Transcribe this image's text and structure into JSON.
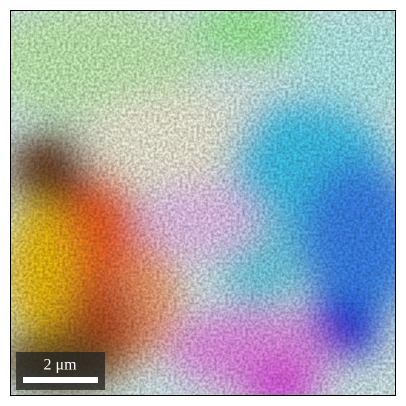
{
  "scale_bar": {
    "label": "2 μm"
  }
}
